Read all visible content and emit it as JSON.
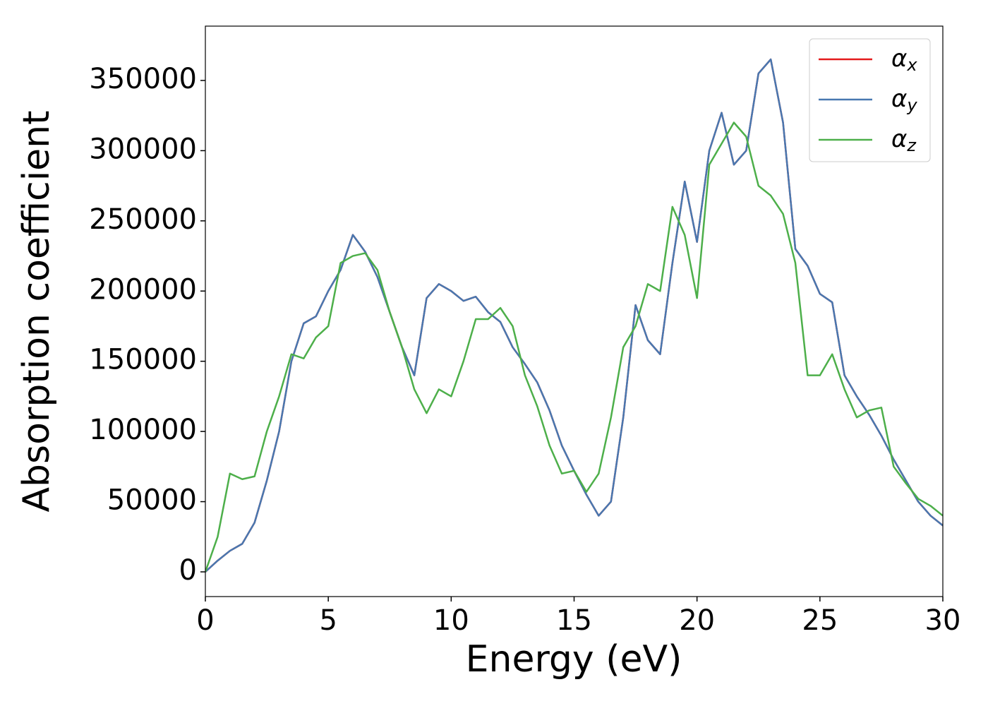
{
  "chart_data": {
    "type": "line",
    "xlabel": "Energy (eV)",
    "ylabel": "Absorption coefficient",
    "x": [
      0,
      0.5,
      1,
      1.5,
      2,
      2.5,
      3,
      3.5,
      4,
      4.5,
      5,
      5.5,
      6,
      6.5,
      7,
      7.5,
      8,
      8.5,
      9,
      9.5,
      10,
      10.5,
      11,
      11.5,
      12,
      12.5,
      13,
      13.5,
      14,
      14.5,
      15,
      15.5,
      16,
      16.5,
      17,
      17.5,
      18,
      18.5,
      19,
      19.5,
      20,
      20.5,
      21,
      21.5,
      22,
      22.5,
      23,
      23.5,
      24,
      24.5,
      25,
      25.5,
      26,
      26.5,
      27,
      27.5,
      28,
      28.5,
      29,
      29.5,
      30
    ],
    "series": [
      {
        "name": "αx",
        "color": "#e41a1c",
        "values": [
          0,
          8000,
          15000,
          20000,
          35000,
          65000,
          100000,
          150000,
          177000,
          182000,
          200000,
          215000,
          240000,
          228000,
          210000,
          185000,
          160000,
          140000,
          195000,
          205000,
          200000,
          193000,
          196000,
          185000,
          178000,
          160000,
          148000,
          135000,
          115000,
          90000,
          72000,
          55000,
          40000,
          50000,
          110000,
          190000,
          165000,
          155000,
          220000,
          278000,
          235000,
          300000,
          327000,
          290000,
          300000,
          355000,
          365000,
          320000,
          230000,
          218000,
          198000,
          192000,
          140000,
          125000,
          112000,
          97000,
          80000,
          65000,
          50000,
          40000,
          33000
        ]
      },
      {
        "name": "αy",
        "color": "#4878b0",
        "values": [
          0,
          8000,
          15000,
          20000,
          35000,
          65000,
          100000,
          150000,
          177000,
          182000,
          200000,
          215000,
          240000,
          228000,
          210000,
          185000,
          160000,
          140000,
          195000,
          205000,
          200000,
          193000,
          196000,
          185000,
          178000,
          160000,
          148000,
          135000,
          115000,
          90000,
          72000,
          55000,
          40000,
          50000,
          110000,
          190000,
          165000,
          155000,
          220000,
          278000,
          235000,
          300000,
          327000,
          290000,
          300000,
          355000,
          365000,
          320000,
          230000,
          218000,
          198000,
          192000,
          140000,
          125000,
          112000,
          97000,
          80000,
          65000,
          50000,
          40000,
          33000
        ]
      },
      {
        "name": "αz",
        "color": "#4daf4a",
        "values": [
          0,
          25000,
          70000,
          66000,
          68000,
          100000,
          125000,
          155000,
          152000,
          167000,
          175000,
          220000,
          225000,
          227000,
          215000,
          185000,
          160000,
          130000,
          113000,
          130000,
          125000,
          150000,
          180000,
          180000,
          188000,
          175000,
          140000,
          118000,
          90000,
          70000,
          72000,
          57000,
          70000,
          110000,
          160000,
          175000,
          205000,
          200000,
          260000,
          240000,
          195000,
          290000,
          305000,
          320000,
          310000,
          275000,
          268000,
          255000,
          220000,
          140000,
          140000,
          155000,
          130000,
          110000,
          115000,
          117000,
          75000,
          63000,
          52000,
          47000,
          40000
        ]
      }
    ],
    "xlim": [
      0,
      30
    ],
    "xticks": [
      0,
      5,
      10,
      15,
      20,
      25,
      30
    ],
    "ylim": [
      -17600,
      388700
    ],
    "yticks": [
      0,
      50000,
      100000,
      150000,
      200000,
      250000,
      300000,
      350000
    ],
    "legend": "upper right",
    "grid": false
  }
}
